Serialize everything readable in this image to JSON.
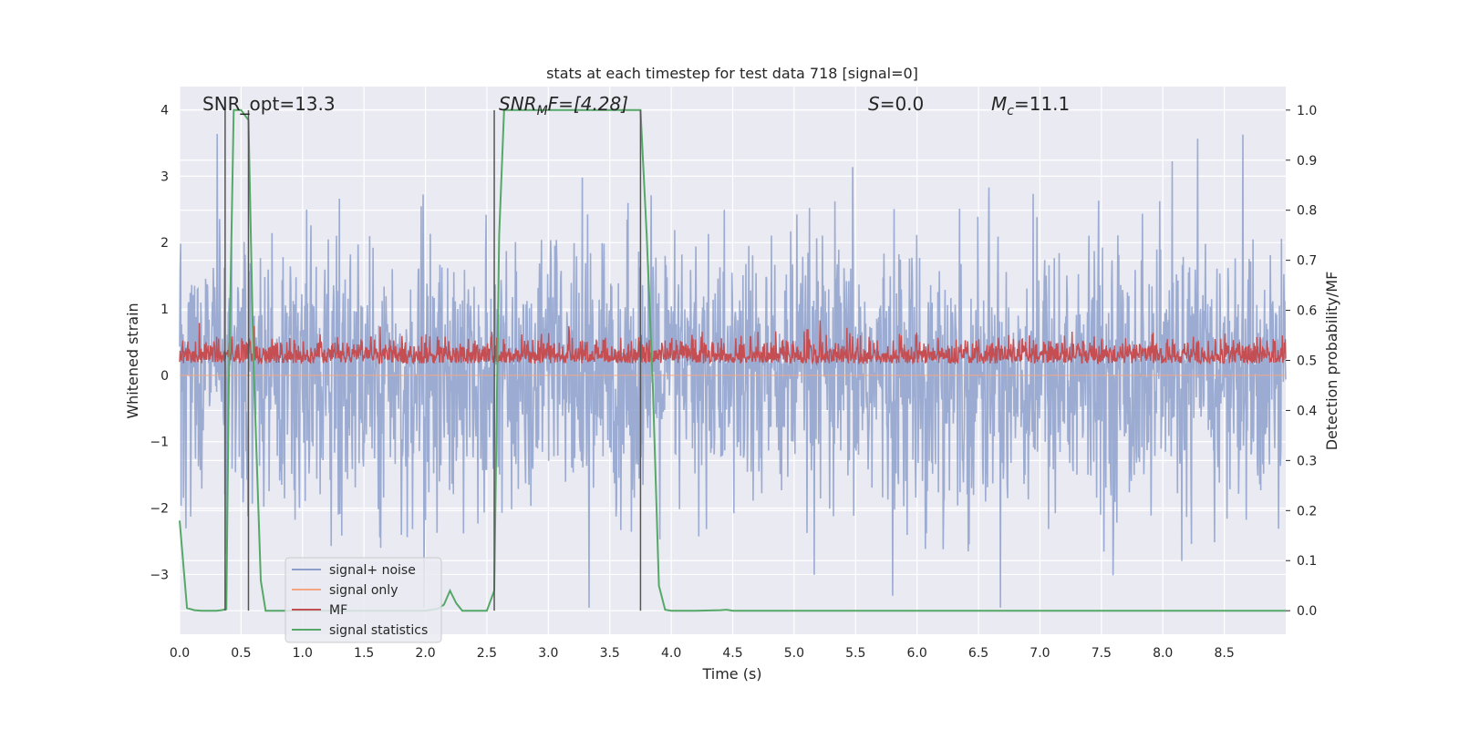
{
  "chart_data": {
    "type": "line",
    "title": "stats at each timestep for test data 718 [signal=0]",
    "xlabel": "Time (s)",
    "ylabel": "Whitened strain",
    "y2label": "Detection probability/MF",
    "xlim": [
      0.0,
      9.0
    ],
    "ylim": [
      -3.9,
      4.35
    ],
    "y2lim": [
      -0.047,
      1.047
    ],
    "x_ticks": [
      "0.0",
      "0.5",
      "1.0",
      "1.5",
      "2.0",
      "2.5",
      "3.0",
      "3.5",
      "4.0",
      "4.5",
      "5.0",
      "5.5",
      "6.0",
      "6.5",
      "7.0",
      "7.5",
      "8.0",
      "8.5"
    ],
    "y_ticks": [
      "4",
      "3",
      "2",
      "1",
      "0",
      "−1",
      "−2",
      "−3"
    ],
    "y2_ticks": [
      "1.0",
      "0.9",
      "0.8",
      "0.7",
      "0.6",
      "0.5",
      "0.4",
      "0.3",
      "0.2",
      "0.1",
      "0.0"
    ],
    "grid": true,
    "legend_position": "lower-left",
    "annotations": {
      "snr_opt": "SNR_opt=13.3",
      "snr_mf_main": "SNR",
      "snr_mf_sub": "M",
      "snr_mf_rest": "F=[4.28]",
      "s_italic": "S",
      "s_rest": "=0.0",
      "mc_main": "M",
      "mc_sub": "c",
      "mc_rest": "=11.1"
    },
    "vertical_markers_x": [
      0.37,
      0.56,
      2.56,
      3.75
    ],
    "series": [
      {
        "name": "signal+ noise",
        "color": "#8da0cb",
        "kind": "noise",
        "sigma": 1.0,
        "approx_range": [
          -3.5,
          4.0
        ]
      },
      {
        "name": "signal only",
        "color": "#f4a582",
        "kind": "flat",
        "value": 0.0
      },
      {
        "name": "MF",
        "color": "#c44e52",
        "kind": "mf",
        "baseline": 0.25,
        "approx_range": [
          0.02,
          0.9
        ]
      },
      {
        "name": "signal statistics",
        "color": "#55a868",
        "kind": "probability",
        "x": [
          0.0,
          0.06,
          0.12,
          0.18,
          0.24,
          0.3,
          0.34,
          0.38,
          0.4,
          0.44,
          0.5,
          0.56,
          0.6,
          0.66,
          0.7,
          0.8,
          1.0,
          1.5,
          1.9,
          2.0,
          2.1,
          2.15,
          2.2,
          2.25,
          2.3,
          2.4,
          2.5,
          2.56,
          2.6,
          2.64,
          2.7,
          3.0,
          3.5,
          3.75,
          3.8,
          3.85,
          3.9,
          3.95,
          4.0,
          4.2,
          4.4,
          4.45,
          4.5,
          5.0,
          6.0,
          7.0,
          8.0,
          9.0
        ],
        "y": [
          0.18,
          0.005,
          0.001,
          0.0,
          0.0,
          0.0,
          0.001,
          0.003,
          0.45,
          1.0,
          1.0,
          0.98,
          0.5,
          0.06,
          0.0,
          0.0,
          0.0,
          0.0,
          0.0,
          0.0,
          0.004,
          0.012,
          0.04,
          0.015,
          0.0,
          0.0,
          0.0,
          0.04,
          0.75,
          1.0,
          1.0,
          1.0,
          1.0,
          1.0,
          0.75,
          0.45,
          0.05,
          0.002,
          0.0,
          0.0,
          0.001,
          0.002,
          0.0,
          0.0,
          0.0,
          0.0,
          0.0,
          0.0
        ]
      }
    ]
  }
}
